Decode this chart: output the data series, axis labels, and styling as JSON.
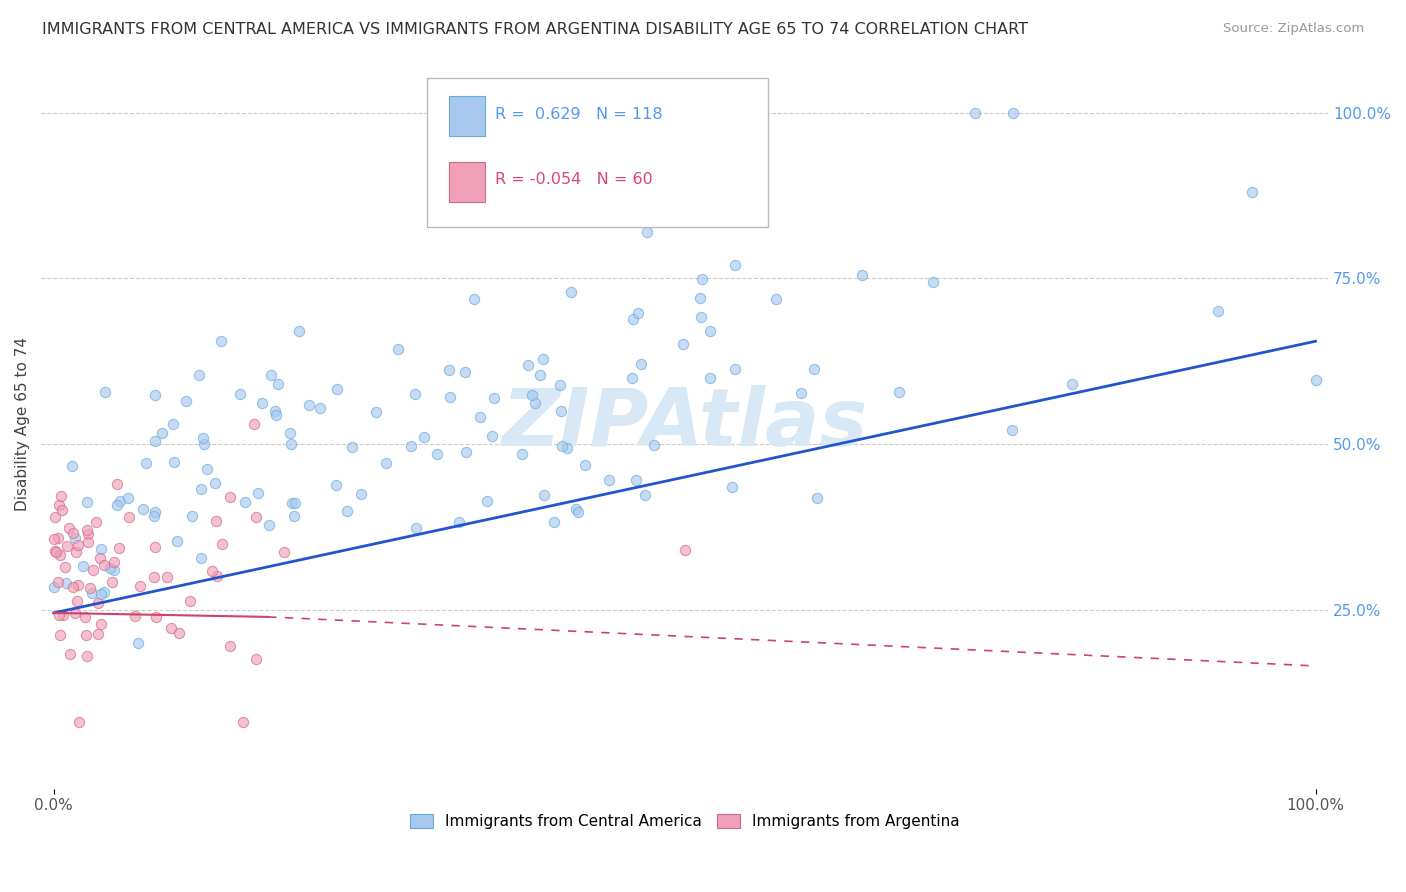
{
  "title": "IMMIGRANTS FROM CENTRAL AMERICA VS IMMIGRANTS FROM ARGENTINA DISABILITY AGE 65 TO 74 CORRELATION CHART",
  "source": "Source: ZipAtlas.com",
  "ylabel": "Disability Age 65 to 74",
  "r_blue": 0.629,
  "n_blue": 118,
  "r_pink": -0.054,
  "n_pink": 60,
  "blue_color": "#a8c8f0",
  "blue_edge": "#6aaad8",
  "pink_color": "#f0a0b8",
  "pink_edge": "#d06888",
  "blue_line_color": "#2255cc",
  "pink_line_color": "#cc4466",
  "right_tick_color": "#5599ee",
  "background_color": "#ffffff",
  "grid_color": "#cccccc",
  "watermark_color": "#d8e8f5",
  "title_color": "#333333",
  "ylabel_color": "#444444",
  "source_color": "#999999",
  "scatter_size": 55,
  "scatter_alpha": 0.65,
  "scatter_lw": 0.8,
  "blue_line_x": [
    0.0,
    1.0
  ],
  "blue_line_y": [
    0.245,
    0.655
  ],
  "pink_line_x": [
    0.0,
    1.0
  ],
  "pink_line_y": [
    0.245,
    0.165
  ],
  "xlim": [
    -0.01,
    1.01
  ],
  "ylim": [
    -0.02,
    1.08
  ],
  "yticks": [
    0.25,
    0.5,
    0.75,
    1.0
  ],
  "ytick_labels": [
    "25.0%",
    "50.0%",
    "75.0%",
    "100.0%"
  ],
  "legend_entry1": "Immigrants from Central America",
  "legend_entry2": "Immigrants from Argentina"
}
